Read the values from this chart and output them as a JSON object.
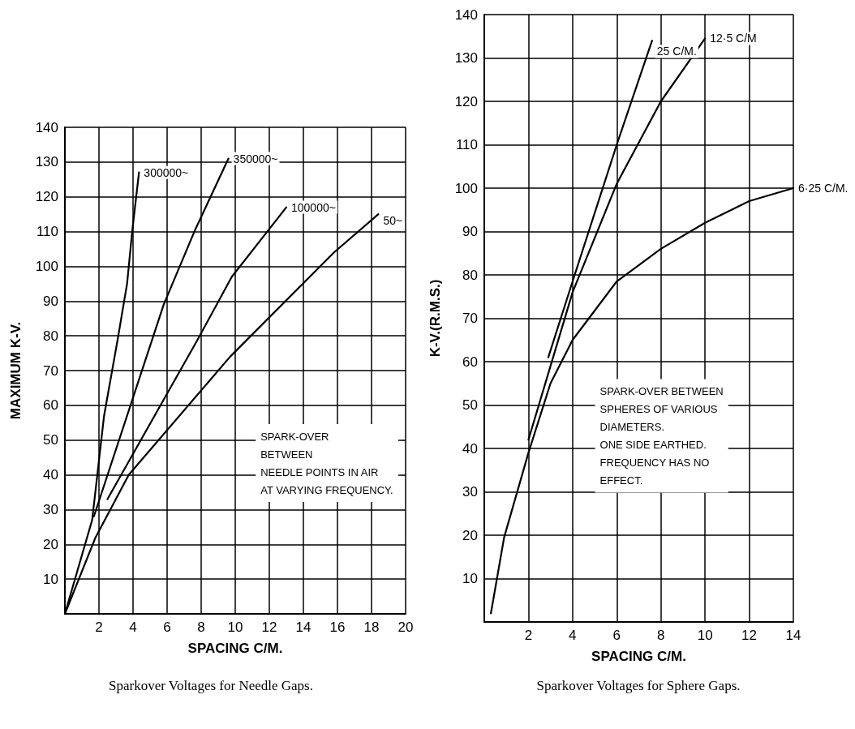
{
  "chart_data": [
    {
      "type": "line",
      "title": "Sparkover Voltages for Needle Gaps.",
      "xlabel": "SPACING C/M.",
      "ylabel": "MAXIMUM K-V.",
      "annotations": [
        "SPARK-OVER\nBETWEEN\nNEEDLE POINTS IN AIR\nAT VARYING FREQUENCY."
      ],
      "xlim": [
        0,
        20
      ],
      "xticks": [
        2,
        4,
        6,
        8,
        10,
        12,
        14,
        16,
        18,
        20
      ],
      "ylim": [
        0,
        140
      ],
      "yticks": [
        10,
        20,
        30,
        40,
        50,
        60,
        70,
        80,
        90,
        100,
        110,
        120,
        130,
        140
      ],
      "grid": true,
      "legend": false,
      "marker": "none",
      "line_style": "solid",
      "series": [
        {
          "name": "300000~",
          "color": "#000000",
          "x": [
            0,
            1.6,
            2.3,
            3.1,
            3.65,
            3.95,
            4.35
          ],
          "values": [
            0,
            27,
            57,
            79,
            95,
            110,
            127
          ]
        },
        {
          "name": "350000~",
          "color": "#000000",
          "x": [
            1.7,
            5.8,
            7.6,
            9.6
          ],
          "values": [
            28,
            89,
            110,
            131
          ]
        },
        {
          "name": "100000~",
          "color": "#000000",
          "x": [
            2.5,
            7.8,
            9.8,
            13
          ],
          "values": [
            33,
            79,
            97,
            117
          ]
        },
        {
          "name": "50~",
          "color": "#000000",
          "x": [
            0,
            1.8,
            3.75,
            9.7,
            15.8,
            18.4
          ],
          "values": [
            0,
            22,
            40,
            74,
            104,
            115
          ]
        }
      ]
    },
    {
      "type": "line",
      "title": "Sparkover Voltages for Sphere Gaps.",
      "xlabel": "SPACING C/M.",
      "ylabel": "K-V.(R.M.S.)",
      "annotations": [
        "SPARK-OVER BETWEEN\nSPHERES OF VARIOUS\nDIAMETERS.\nONE SIDE EARTHED.\nFREQUENCY HAS NO\nEFFECT."
      ],
      "xlim": [
        0,
        14
      ],
      "xticks": [
        2,
        4,
        6,
        8,
        10,
        12,
        14
      ],
      "ylim": [
        0,
        140
      ],
      "yticks": [
        10,
        20,
        30,
        40,
        50,
        60,
        70,
        80,
        90,
        100,
        110,
        120,
        130,
        140
      ],
      "grid": true,
      "legend": false,
      "marker": "none",
      "line_style": "solid",
      "series": [
        {
          "name": "25 C/M.",
          "color": "#000000",
          "x": [
            2.9,
            4,
            6,
            7.6
          ],
          "values": [
            61,
            78.5,
            110,
            134
          ]
        },
        {
          "name": "12·5 C/M",
          "color": "#000000",
          "x": [
            2,
            3,
            4,
            6,
            8,
            10
          ],
          "values": [
            42,
            59,
            76,
            101,
            120,
            134.5
          ]
        },
        {
          "name": "6·25 C/M.",
          "color": "#000000",
          "x": [
            0.3,
            0.9,
            2,
            3,
            4,
            6,
            8,
            10,
            12,
            14
          ],
          "values": [
            2,
            19.5,
            39,
            55,
            65,
            78.5,
            86,
            92,
            97,
            100
          ]
        }
      ]
    }
  ]
}
